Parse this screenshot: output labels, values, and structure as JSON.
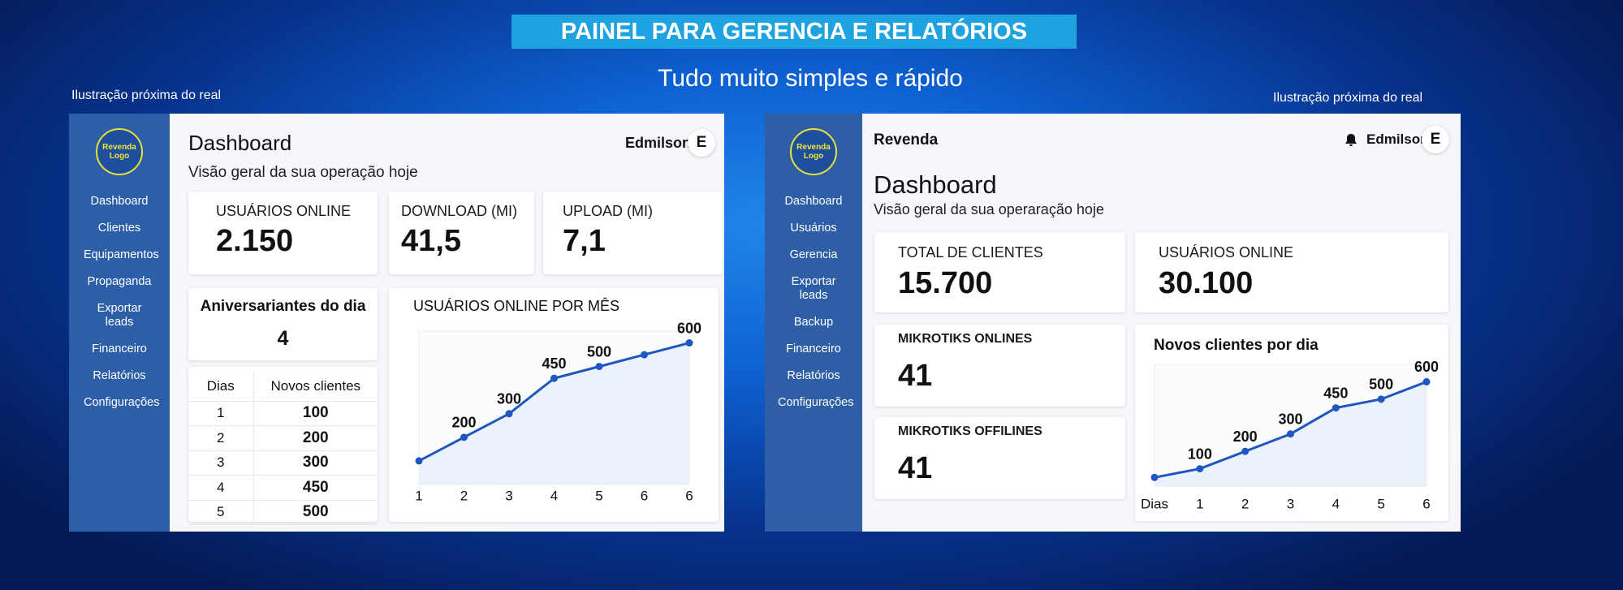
{
  "header": {
    "title": "PAINEL PARA GERENCIA E RELATÓRIOS",
    "subtitle": "Tudo muito simples e rápido",
    "note_left": "Ilustração próxima do real",
    "note_right": "Ilustração próxima do real"
  },
  "left_panel": {
    "logo": "Revenda Logo",
    "nav": [
      "Dashboard",
      "Clientes",
      "Equipamentos",
      "Propaganda",
      "Exportar leads",
      "Financeiro",
      "Relatórios",
      "Configurações"
    ],
    "title": "Dashboard",
    "subtitle": "Visão geral da sua operação hoje",
    "user": "Edmilson",
    "avatar": "E",
    "stats": [
      {
        "label": "USUÁRIOS ONLINE",
        "value": "2.150"
      },
      {
        "label": "DOWNLOAD (MI)",
        "value": "41,5"
      },
      {
        "label": "UPLOAD (MI)",
        "value": "7,1"
      }
    ],
    "birthdays": {
      "label": "Aniversariantes do dia",
      "value": 4
    },
    "table": {
      "header": [
        "Dias",
        "Novos clientes"
      ],
      "rows": [
        [
          1,
          100
        ],
        [
          2,
          200
        ],
        [
          3,
          300
        ],
        [
          4,
          450
        ],
        [
          5,
          500
        ]
      ]
    }
  },
  "right_panel": {
    "logo": "Revenda Logo",
    "nav": [
      "Dashboard",
      "Usuários",
      "Gerencia",
      "Exportar leads",
      "Backup",
      "Financeiro",
      "Relatórios",
      "Configurações"
    ],
    "brand": "Revenda",
    "user": "Edmilson",
    "avatar": "E",
    "title": "Dashboard",
    "subtitle": "Visão geral da sua operaração hoje",
    "stats": [
      {
        "label": "TOTAL DE CLIENTES",
        "value": "15.700"
      },
      {
        "label": "USUÁRIOS ONLINE",
        "value": "30.100"
      },
      {
        "label": "MIKROTIKS ONLINES",
        "value": "41"
      },
      {
        "label": "MIKROTIKS OFFILINES",
        "value": "41"
      }
    ]
  },
  "chart_data": [
    {
      "type": "line",
      "title": "USUÁRIOS ONLINE POR MÊS",
      "categories": [
        "1",
        "2",
        "3",
        "4",
        "5",
        "6",
        "6"
      ],
      "values": [
        100,
        200,
        300,
        450,
        500,
        550,
        600
      ],
      "value_labels": [
        null,
        "200",
        "300",
        "450",
        "500",
        null,
        "600"
      ],
      "ylim": [
        0,
        650
      ],
      "color": "#1f56c0"
    },
    {
      "type": "line",
      "title": "Novos clientes por dia",
      "categories": [
        "Dias",
        "1",
        "2",
        "3",
        "4",
        "5",
        "6"
      ],
      "values": [
        50,
        100,
        200,
        300,
        450,
        500,
        600
      ],
      "value_labels": [
        null,
        "100",
        "200",
        "300",
        "450",
        "500",
        "600"
      ],
      "ylim": [
        0,
        700
      ],
      "color": "#1f56c0"
    }
  ]
}
